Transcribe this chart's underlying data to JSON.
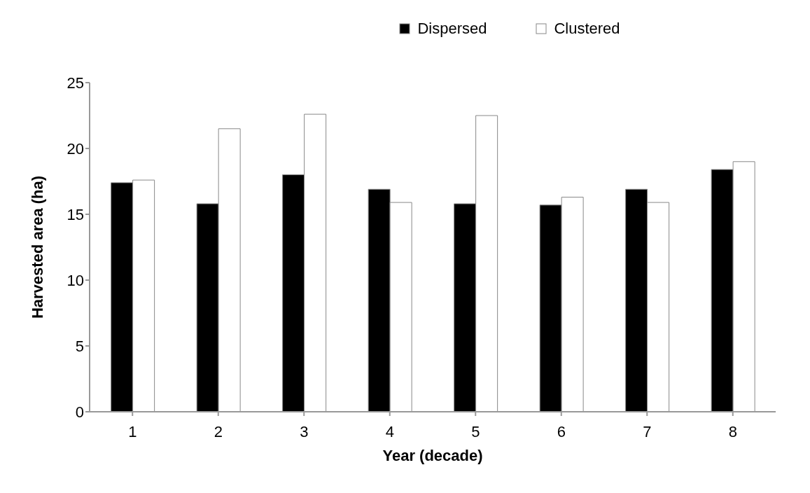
{
  "chart_data": {
    "type": "bar",
    "xlabel": "Year (decade)",
    "ylabel": "Harvested area (ha)",
    "categories": [
      "1",
      "2",
      "3",
      "4",
      "5",
      "6",
      "7",
      "8"
    ],
    "series": [
      {
        "name": "Dispersed",
        "color": "#000000",
        "values": [
          17.4,
          15.8,
          18,
          16.9,
          15.8,
          15.7,
          16.9,
          18.4
        ]
      },
      {
        "name": "Clustered",
        "color": "#ffffff",
        "values": [
          17.6,
          21.5,
          22.6,
          15.9,
          22.5,
          16.3,
          15.9,
          19
        ]
      }
    ],
    "ylim": [
      0,
      25
    ],
    "yticks": [
      0,
      5,
      10,
      15,
      20,
      25
    ],
    "grid": false,
    "legend": "top"
  }
}
